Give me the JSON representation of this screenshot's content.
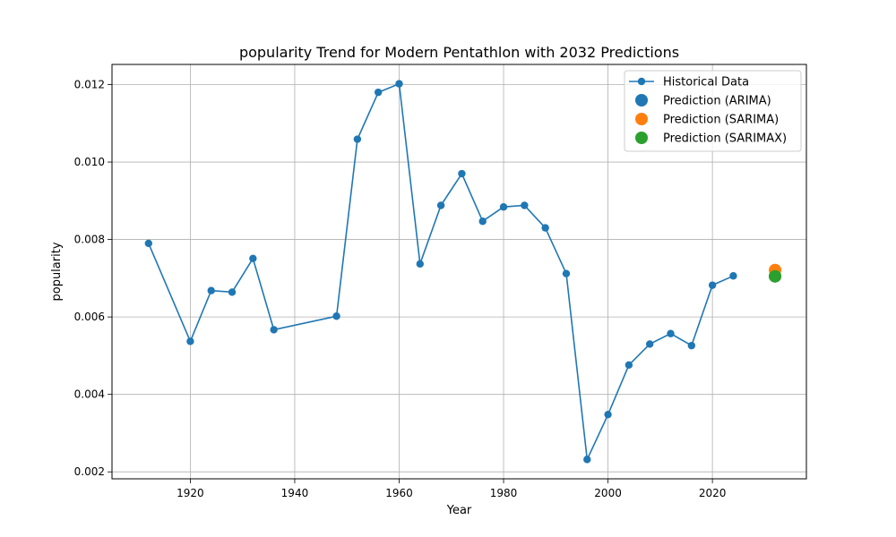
{
  "chart_data": {
    "type": "line",
    "title": "popularity Trend for Modern Pentathlon with 2032 Predictions",
    "xlabel": "Year",
    "ylabel": "popularity",
    "xlim": [
      1905,
      2038
    ],
    "ylim": [
      0.00182,
      0.01252
    ],
    "xticks": [
      1920,
      1940,
      1960,
      1980,
      2000,
      2020
    ],
    "yticks": [
      0.002,
      0.004,
      0.006,
      0.008,
      0.01,
      0.012
    ],
    "xtick_labels": [
      "1920",
      "1940",
      "1960",
      "1980",
      "2000",
      "2020"
    ],
    "ytick_labels": [
      "0.002",
      "0.004",
      "0.006",
      "0.008",
      "0.010",
      "0.012"
    ],
    "grid": true,
    "legend_position": "top-right",
    "series": [
      {
        "name": "Historical Data",
        "color": "#1f77b4",
        "x": [
          1912,
          1920,
          1924,
          1928,
          1932,
          1936,
          1948,
          1952,
          1956,
          1960,
          1964,
          1968,
          1972,
          1976,
          1980,
          1984,
          1988,
          1992,
          1996,
          2000,
          2004,
          2008,
          2012,
          2016,
          2020,
          2024
        ],
        "y": [
          0.0079,
          0.00537,
          0.00668,
          0.00664,
          0.00751,
          0.00567,
          0.00602,
          0.01059,
          0.0118,
          0.01202,
          0.00737,
          0.00888,
          0.0097,
          0.00847,
          0.00884,
          0.00888,
          0.0083,
          0.00712,
          0.00232,
          0.00348,
          0.00476,
          0.0053,
          0.00557,
          0.00526,
          0.00682,
          0.00706
        ]
      }
    ],
    "predictions": [
      {
        "name": "Prediction (ARIMA)",
        "color": "#1f77b4",
        "x": 2032,
        "y": 0.00705
      },
      {
        "name": "Prediction (SARIMA)",
        "color": "#ff7f0e",
        "x": 2032,
        "y": 0.00721
      },
      {
        "name": "Prediction (SARIMAX)",
        "color": "#2ca02c",
        "x": 2032,
        "y": 0.00705
      }
    ]
  }
}
